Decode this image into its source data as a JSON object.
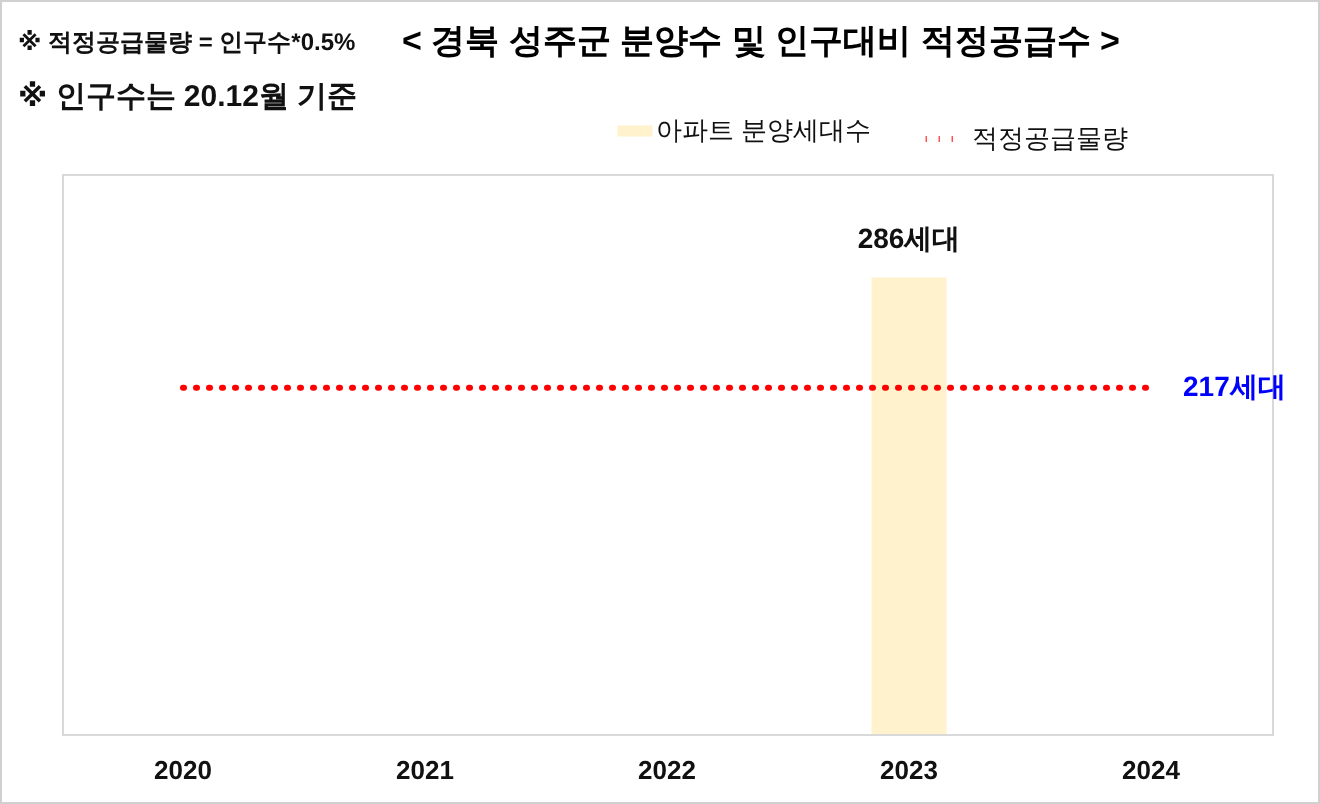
{
  "chart_data": {
    "type": "bar",
    "title": "< 경북 성주군 분양수 및 인구대비 적정공급수 >",
    "annotations": [
      "※ 적정공급물량 = 인구수*0.5%",
      "※ 인구수는 20.12월 기준"
    ],
    "categories": [
      "2020",
      "2021",
      "2022",
      "2023",
      "2024"
    ],
    "series": [
      {
        "name": "아파트 분양세대수",
        "color": "#fff2cc",
        "values": [
          null,
          null,
          null,
          286,
          null
        ],
        "value_labels": [
          null,
          null,
          null,
          "286세대",
          null
        ]
      },
      {
        "name": "적정공급물량",
        "type": "line",
        "color": "#ff0000",
        "line_style": "dotted",
        "values": [
          217,
          217,
          217,
          217,
          217
        ],
        "value_labels": [
          null,
          null,
          null,
          null,
          "217세대"
        ]
      }
    ],
    "legend": "top right"
  }
}
